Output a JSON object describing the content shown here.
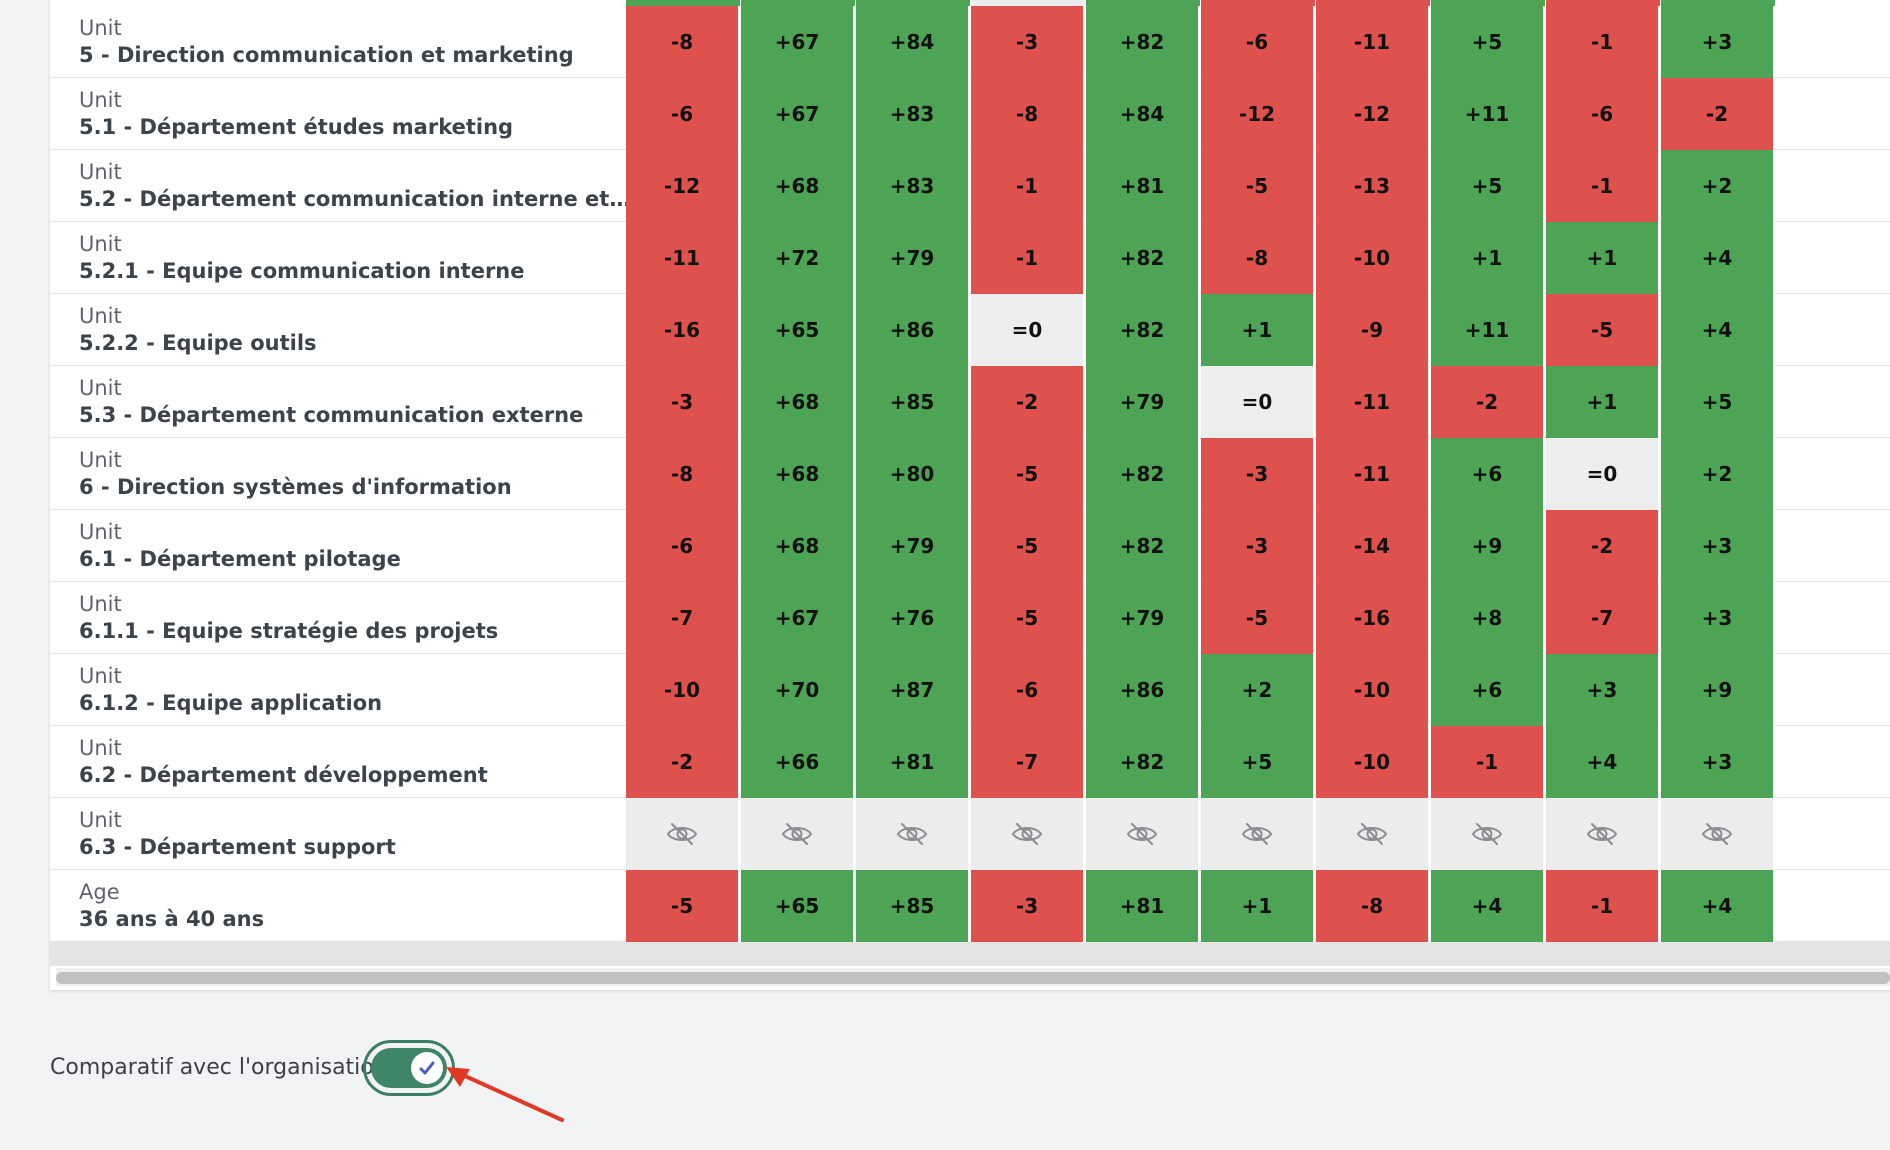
{
  "colors": {
    "positive": "#4ea455",
    "negative": "#df514d",
    "neutral": "#eeeeee",
    "hidden": "#ececec",
    "toggle": "#3f8568",
    "annotation": "#e03a27"
  },
  "top_strip": [
    "positive",
    "positive",
    "positive",
    "neutral",
    "positive",
    "negative",
    "negative",
    "positive",
    "negative",
    "positive"
  ],
  "rows": [
    {
      "category": "Unit",
      "name": "5 - Direction communication et marketing",
      "values": [
        "-8",
        "+67",
        "+84",
        "-3",
        "+82",
        "-6",
        "-11",
        "+5",
        "-1",
        "+3"
      ]
    },
    {
      "category": "Unit",
      "name": "5.1 - Département études marketing",
      "values": [
        "-6",
        "+67",
        "+83",
        "-8",
        "+84",
        "-12",
        "-12",
        "+11",
        "-6",
        "-2"
      ]
    },
    {
      "category": "Unit",
      "name": "5.2 - Département communication interne et…",
      "values": [
        "-12",
        "+68",
        "+83",
        "-1",
        "+81",
        "-5",
        "-13",
        "+5",
        "-1",
        "+2"
      ]
    },
    {
      "category": "Unit",
      "name": "5.2.1 - Equipe communication interne",
      "values": [
        "-11",
        "+72",
        "+79",
        "-1",
        "+82",
        "-8",
        "-10",
        "+1",
        "+1",
        "+4"
      ]
    },
    {
      "category": "Unit",
      "name": "5.2.2 - Equipe outils",
      "values": [
        "-16",
        "+65",
        "+86",
        "=0",
        "+82",
        "+1",
        "-9",
        "+11",
        "-5",
        "+4"
      ]
    },
    {
      "category": "Unit",
      "name": "5.3 - Département communication externe",
      "values": [
        "-3",
        "+68",
        "+85",
        "-2",
        "+79",
        "=0",
        "-11",
        "-2",
        "+1",
        "+5"
      ]
    },
    {
      "category": "Unit",
      "name": "6 - Direction systèmes d'information",
      "values": [
        "-8",
        "+68",
        "+80",
        "-5",
        "+82",
        "-3",
        "-11",
        "+6",
        "=0",
        "+2"
      ]
    },
    {
      "category": "Unit",
      "name": "6.1 - Département pilotage",
      "values": [
        "-6",
        "+68",
        "+79",
        "-5",
        "+82",
        "-3",
        "-14",
        "+9",
        "-2",
        "+3"
      ]
    },
    {
      "category": "Unit",
      "name": "6.1.1 - Equipe stratégie des projets",
      "values": [
        "-7",
        "+67",
        "+76",
        "-5",
        "+79",
        "-5",
        "-16",
        "+8",
        "-7",
        "+3"
      ]
    },
    {
      "category": "Unit",
      "name": "6.1.2 - Equipe application",
      "values": [
        "-10",
        "+70",
        "+87",
        "-6",
        "+86",
        "+2",
        "-10",
        "+6",
        "+3",
        "+9"
      ]
    },
    {
      "category": "Unit",
      "name": "6.2 - Département développement",
      "values": [
        "-2",
        "+66",
        "+81",
        "-7",
        "+82",
        "+5",
        "-10",
        "-1",
        "+4",
        "+3"
      ]
    },
    {
      "category": "Unit",
      "name": "6.3 - Département support",
      "values": [
        "hidden",
        "hidden",
        "hidden",
        "hidden",
        "hidden",
        "hidden",
        "hidden",
        "hidden",
        "hidden",
        "hidden"
      ]
    },
    {
      "category": "Age",
      "name": "36 ans à 40 ans",
      "values": [
        "-5",
        "+65",
        "+85",
        "-3",
        "+81",
        "+1",
        "-8",
        "+4",
        "-1",
        "+4"
      ]
    }
  ],
  "toggle": {
    "label": "Comparatif avec l'organisation",
    "on": true,
    "knob_icon": "check-icon"
  }
}
